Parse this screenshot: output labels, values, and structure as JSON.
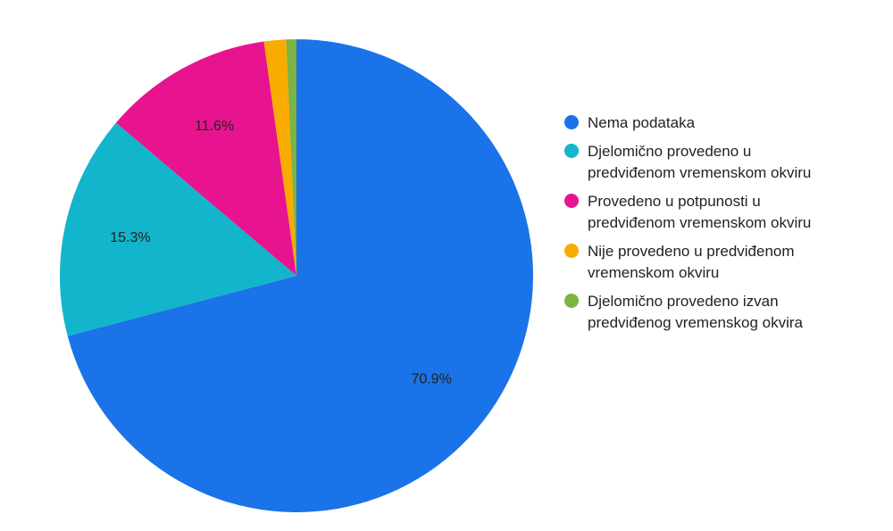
{
  "chart_data": {
    "type": "pie",
    "title": "",
    "slices": [
      {
        "label": "Nema podataka",
        "value": 70.9,
        "color": "#1a73e8",
        "data_label": "70.9%"
      },
      {
        "label": "Djelomično provedeno u predviđenom vremenskom okviru",
        "value": 15.3,
        "color": "#12b5cb",
        "data_label": "15.3%"
      },
      {
        "label": "Provedeno u potpunosti u predviđenom vremenskom okviru",
        "value": 11.6,
        "color": "#e8138f",
        "data_label": "11.6%"
      },
      {
        "label": "Nije provedeno u predviđenom vremenskom okviru",
        "value": 1.5,
        "color": "#f9ab00",
        "data_label": ""
      },
      {
        "label": "Djelomično provedeno izvan predviđenog vremenskog okvira",
        "value": 0.7,
        "color": "#7cb342",
        "data_label": ""
      }
    ],
    "legend_position": "right"
  }
}
